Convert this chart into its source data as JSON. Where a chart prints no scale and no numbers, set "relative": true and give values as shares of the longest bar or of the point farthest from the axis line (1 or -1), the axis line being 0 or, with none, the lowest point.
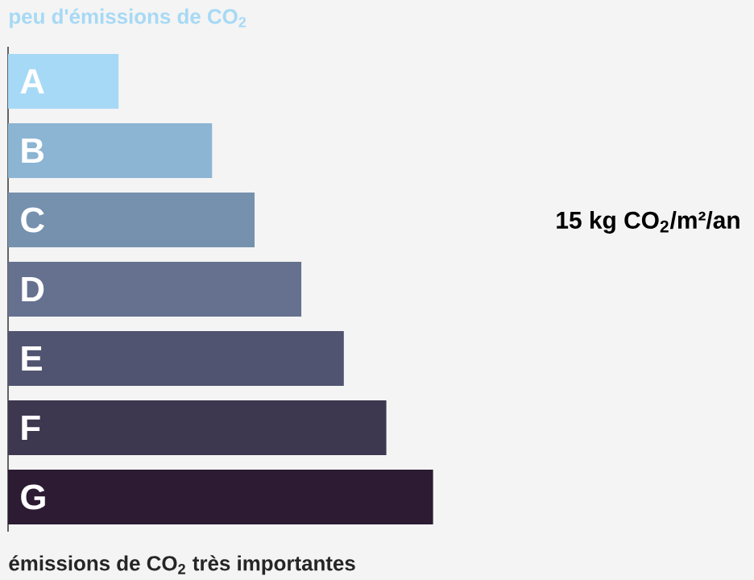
{
  "chart_data": {
    "type": "bar",
    "orientation": "horizontal",
    "relative": true,
    "title": "peu d'émissions de CO$_{2}$",
    "categories": [
      "A",
      "B",
      "C",
      "D",
      "E",
      "F",
      "G"
    ],
    "values": [
      0.26,
      0.48,
      0.58,
      0.69,
      0.79,
      0.89,
      1
    ],
    "colors": [
      "#a6d9f5",
      "#8cb4d3",
      "#7691ae",
      "#65718f",
      "#515470",
      "#3d3850",
      "#2c1b33"
    ],
    "annotations": [
      "15 kg CO$_{2}$/m²/an",
      "émissions de CO$_{2}$ très importantes"
    ]
  }
}
